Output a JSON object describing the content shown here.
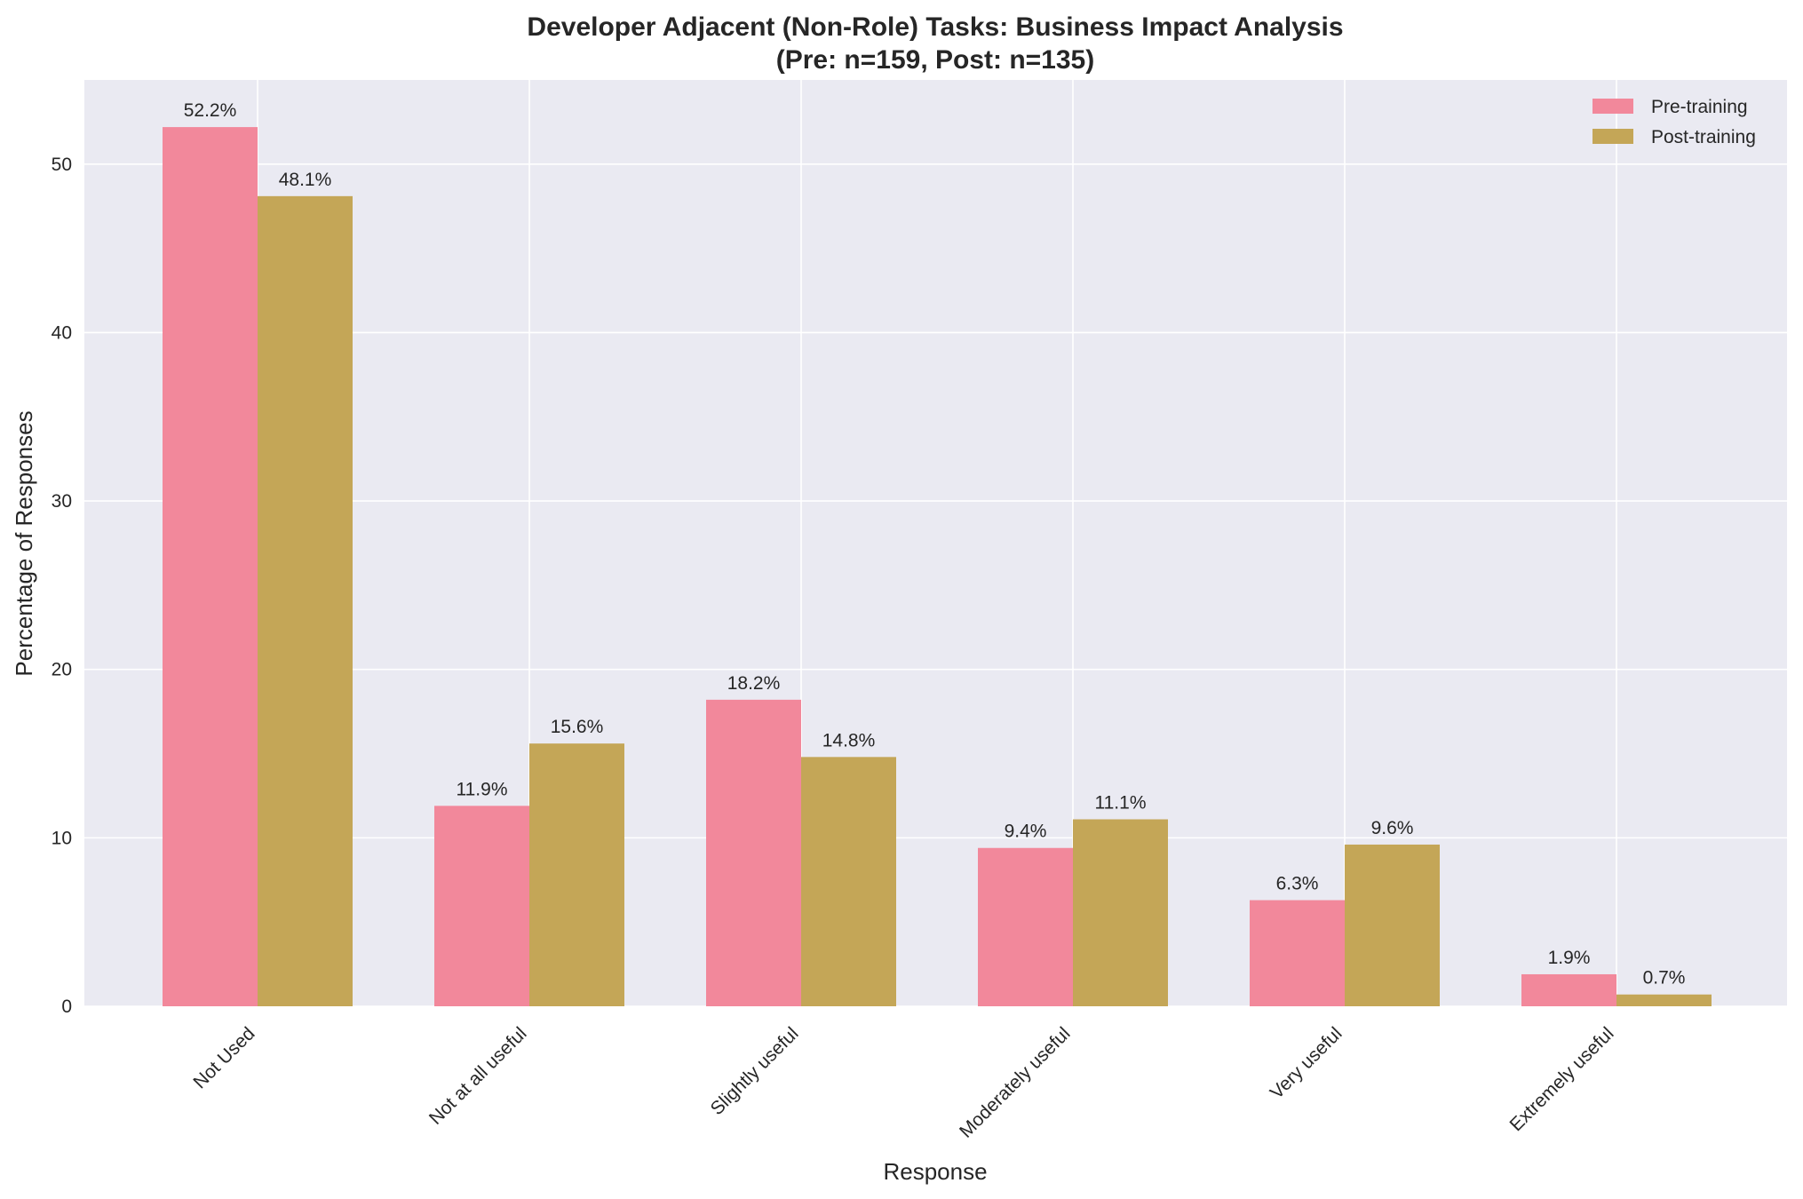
{
  "chart_data": {
    "type": "bar",
    "title": "Developer Adjacent (Non-Role) Tasks: Business Impact Analysis",
    "subtitle": "(Pre: n=159, Post: n=135)",
    "xlabel": "Response",
    "ylabel": "Percentage of Responses",
    "ylim": [
      0,
      55
    ],
    "yticks": [
      0,
      10,
      20,
      30,
      40,
      50
    ],
    "grid": true,
    "legend_position": "top-right",
    "categories": [
      "Not Used",
      "Not at all useful",
      "Slightly useful",
      "Moderately useful",
      "Very useful",
      "Extremely useful"
    ],
    "series": [
      {
        "name": "Pre-training",
        "color": "#f2889b",
        "values": [
          52.2,
          11.9,
          18.2,
          9.4,
          6.3,
          1.9
        ],
        "labels": [
          "52.2%",
          "11.9%",
          "18.2%",
          "9.4%",
          "6.3%",
          "1.9%"
        ]
      },
      {
        "name": "Post-training",
        "color": "#c4a657",
        "values": [
          48.1,
          15.6,
          14.8,
          11.1,
          9.6,
          0.7
        ],
        "labels": [
          "48.1%",
          "15.6%",
          "14.8%",
          "11.1%",
          "9.6%",
          "0.7%"
        ]
      }
    ]
  },
  "colors": {
    "plot_background": "#eaeaf2",
    "grid": "#ffffff"
  }
}
